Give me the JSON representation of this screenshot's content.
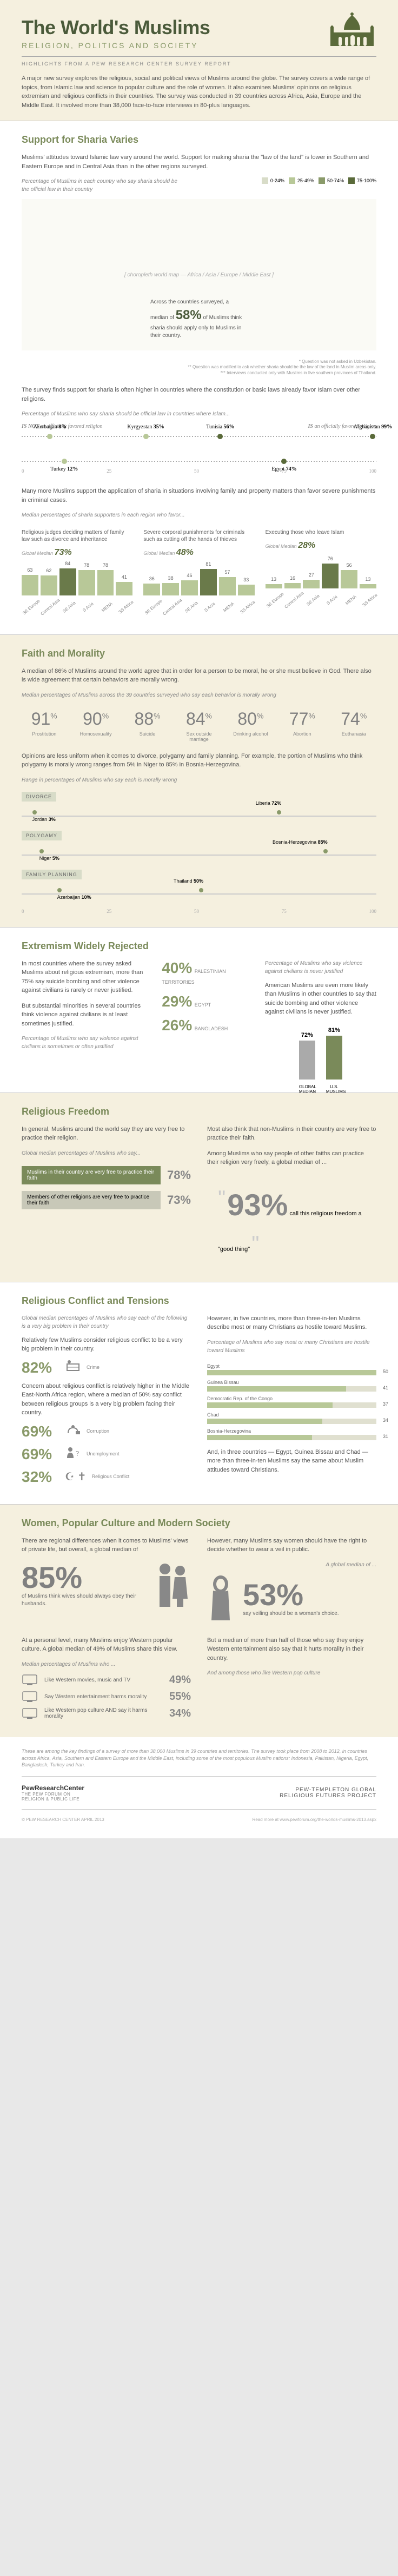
{
  "header": {
    "title": "The World's Muslims",
    "subtitle": "RELIGION, POLITICS AND SOCIETY",
    "highlights": "HIGHLIGHTS FROM A PEW RESEARCH CENTER SURVEY REPORT",
    "intro": "A major new survey explores the religious, social and political views of Muslims around the globe. The survey covers a wide range of topics, from Islamic law and science to popular culture and the role of women. It also examines Muslims' opinions on religious extremism and religious conflicts in their countries. The survey was conducted in 39 countries across Africa, Asia, Europe and the Middle East. It involved more than 38,000 face-to-face interviews in 80-plus languages."
  },
  "sharia": {
    "title": "Support for Sharia Varies",
    "p1": "Muslims' attitudes toward Islamic law vary around the world. Support for making sharia the \"law of the land\" is lower in Southern and Eastern Europe and in Central Asia than in the other regions surveyed.",
    "note1": "Percentage of Muslims in each country who say sharia should be the official law in their country",
    "legend": [
      {
        "label": "0-24%",
        "color": "#d8dcc8"
      },
      {
        "label": "25-49%",
        "color": "#b8c898"
      },
      {
        "label": "50-74%",
        "color": "#8a9a6a"
      },
      {
        "label": "75-100%",
        "color": "#5a6a3a"
      }
    ],
    "map_caption_pre": "Across the countries surveyed, a median of",
    "map_caption_pct": "58%",
    "map_caption_post": "of Muslims think sharia should apply only to Muslims in their country.",
    "footnotes": "* Question was not asked in Uzbekistan.\n** Question was modified to ask whether sharia should be the law of the land in Muslim areas only.\n*** Interviews conducted only with Muslims in five southern provinces of Thailand.",
    "p2": "The survey finds support for sharia is often higher in countries where the constitution or basic laws already favor Islam over other religions.",
    "note2": "Percentage of Muslims who say sharia should be official law in countries where Islam...",
    "left_label": "IS NOT an officially favored religion",
    "right_label": "IS an officially favored religion",
    "dots_top": [
      {
        "name": "Azerbaijan",
        "pct": 8,
        "color": "#b8c898"
      },
      {
        "name": "Kyrgyzstan",
        "pct": 35,
        "color": "#b8c898"
      },
      {
        "name": "Tunisia",
        "pct": 56,
        "color": "#5a6a3a"
      },
      {
        "name": "Afghanistan",
        "pct": 99,
        "color": "#5a6a3a"
      }
    ],
    "dots_bottom": [
      {
        "name": "Turkey",
        "pct": 12,
        "color": "#b8c898"
      },
      {
        "name": "Egypt",
        "pct": 74,
        "color": "#5a6a3a"
      }
    ],
    "p3": "Many more Muslims support the application of sharia in situations involving family and property matters than favor severe punishments in criminal cases.",
    "note3": "Median percentages of sharia supporters in each region who favor...",
    "cols": [
      {
        "title": "Religious judges deciding matters of family law such as divorce and inheritance",
        "global": "73%",
        "bars": [
          {
            "lbl": "SE Europe",
            "v": 63
          },
          {
            "lbl": "Central Asia",
            "v": 62
          },
          {
            "lbl": "SE Asia",
            "v": 84
          },
          {
            "lbl": "S Asia",
            "v": 78
          },
          {
            "lbl": "MENA",
            "v": 78
          },
          {
            "lbl": "SS Africa",
            "v": 41
          }
        ]
      },
      {
        "title": "Severe corporal punishments for criminals such as cutting off the hands of thieves",
        "global": "48%",
        "bars": [
          {
            "lbl": "SE Europe",
            "v": 36
          },
          {
            "lbl": "Central Asia",
            "v": 38
          },
          {
            "lbl": "SE Asia",
            "v": 46
          },
          {
            "lbl": "S Asia",
            "v": 81
          },
          {
            "lbl": "MENA",
            "v": 57
          },
          {
            "lbl": "SS Africa",
            "v": 33
          }
        ]
      },
      {
        "title": "Executing those who leave Islam",
        "global": "28%",
        "bars": [
          {
            "lbl": "SE Europe",
            "v": 13
          },
          {
            "lbl": "Central Asia",
            "v": 16
          },
          {
            "lbl": "SE Asia",
            "v": 27
          },
          {
            "lbl": "S Asia",
            "v": 76
          },
          {
            "lbl": "MENA",
            "v": 56
          },
          {
            "lbl": "SS Africa",
            "v": 13
          }
        ]
      }
    ]
  },
  "faith": {
    "title": "Faith and Morality",
    "p1": "A median of 86% of Muslims around the world agree that in order for a person to be moral, he or she must believe in God. There also is wide agreement that certain behaviors are morally wrong.",
    "note1": "Median percentages of Muslims across the 39 countries surveyed who say each behavior is morally wrong",
    "items": [
      {
        "pct": "91%",
        "lbl": "Prostitution"
      },
      {
        "pct": "90%",
        "lbl": "Homosexuality"
      },
      {
        "pct": "88%",
        "lbl": "Suicide"
      },
      {
        "pct": "84%",
        "lbl": "Sex outside marriage"
      },
      {
        "pct": "80%",
        "lbl": "Drinking alcohol"
      },
      {
        "pct": "77%",
        "lbl": "Abortion"
      },
      {
        "pct": "74%",
        "lbl": "Euthanasia"
      }
    ],
    "p2": "Opinions are less uniform when it comes to divorce, polygamy and family planning. For example, the portion of Muslims who think polygamy is morally wrong ranges from 5% in Niger to 85% in Bosnia-Herzegovina.",
    "note2": "Range in percentages of Muslims who say each is morally wrong",
    "ranges": [
      {
        "title": "DIVORCE",
        "low": {
          "name": "Jordan",
          "pct": 3
        },
        "high": {
          "name": "Liberia",
          "pct": 72
        }
      },
      {
        "title": "POLYGAMY",
        "low": {
          "name": "Niger",
          "pct": 5
        },
        "high": {
          "name": "Bosnia-Herzegovina",
          "pct": 85
        }
      },
      {
        "title": "FAMILY PLANNING",
        "low": {
          "name": "Azerbaijan",
          "pct": 10
        },
        "high": {
          "name": "Thailand",
          "pct": 50
        }
      }
    ]
  },
  "extremism": {
    "title": "Extremism Widely Rejected",
    "p1": "In most countries where the survey asked Muslims about religious extremism, more than 75% say suicide bombing and other violence against civilians is rarely or never justified.",
    "p2": "But substantial minorities in several countries think violence against civilians is at least sometimes justified.",
    "note1": "Percentage of Muslims who say violence against civilians is sometimes or often justified",
    "lowcountries": [
      {
        "name": "PALESTINIAN TERRITORIES",
        "pct": "40%"
      },
      {
        "name": "EGYPT",
        "pct": "29%"
      },
      {
        "name": "BANGLADESH",
        "pct": "26%"
      }
    ],
    "right_txt": "Percentage of Muslims who say violence against civilians is never justified",
    "p3": "American Muslims are even more likely than Muslims in other countries to say that suicide bombing and other violence against civilians is never justified.",
    "bars": [
      {
        "lbl": "GLOBAL MEDIAN",
        "v": 72,
        "color": "#aaa"
      },
      {
        "lbl": "U.S. MUSLIMS",
        "v": 81,
        "color": "#7a8a5a"
      }
    ]
  },
  "freedom": {
    "title": "Religious Freedom",
    "p1": "In general, Muslims around the world say they are very free to practice their religion.",
    "note1": "Global median percentages of Muslims who say...",
    "rows": [
      {
        "txt": "Muslims in their country are very free to practice their faith",
        "pct": "78%"
      },
      {
        "txt": "Members of other religions are very free to practice their faith",
        "pct": "73%"
      }
    ],
    "p2": "Most also think that non-Muslims in their country are very free to practice their faith.",
    "p3": "Among Muslims who say people of other faiths can practice their religion very freely, a global median of ...",
    "big": "93%",
    "big_after": "call this religious freedom a \"good thing\""
  },
  "conflict": {
    "title": "Religious Conflict and Tensions",
    "note1": "Global median percentages of Muslims who say each of the following is a very big problem in their country",
    "rows": [
      {
        "txt": "Relatively few Muslims consider religious conflict to be a very big problem in their country.",
        "lbl": "Crime",
        "pct": "82%",
        "icon": "crime"
      },
      {
        "txt": "Concern about religious conflict is relatively higher in the Middle East-North Africa region, where a median of 50% say conflict between religious groups is a very big problem facing their country.",
        "lbl": "Corruption",
        "pct": "69%",
        "icon": "corrupt"
      },
      {
        "txt": "",
        "lbl": "Unemployment",
        "pct": "69%",
        "icon": "unemp"
      },
      {
        "txt": "",
        "lbl": "Religious Conflict",
        "pct": "32%",
        "icon": "cross-crescent"
      }
    ],
    "p2": "However, in five countries, more than three-in-ten Muslims describe most or many Christians as hostile toward Muslims.",
    "note2": "Percentage of Muslims who say most or many Christians are hostile toward Muslims",
    "bars": [
      {
        "name": "Egypt",
        "pct": 50
      },
      {
        "name": "Guinea Bissau",
        "pct": 41
      },
      {
        "name": "Democratic Rep. of the Congo",
        "pct": 37
      },
      {
        "name": "Chad",
        "pct": 34
      },
      {
        "name": "Bosnia-Herzegovina",
        "pct": 31
      }
    ],
    "p3": "And, in three countries — Egypt, Guinea Bissau and Chad — more than three-in-ten Muslims say the same about Muslim attitudes toward Christians."
  },
  "women": {
    "title": "Women, Popular Culture and Modern Society",
    "p1": "There are regional differences when it comes to Muslims' views of private life, but overall, a global median of",
    "big1": "85%",
    "after1": "of Muslims think wives should always obey their husbands.",
    "p2": "However, many Muslims say women should have the right to decide whether to wear a veil in public.",
    "pre2": "A global median of ...",
    "big2": "53%",
    "after2": "say veiling should be a woman's choice.",
    "p3": "At a personal level, many Muslims enjoy Western popular culture. A global median of 49% of Muslims share this view.",
    "note3": "Median percentages of Muslims who ...",
    "rows3": [
      {
        "lbl": "Like Western movies, music and TV",
        "pct": "49%"
      },
      {
        "lbl": "Say Western entertainment harms morality",
        "pct": "55%"
      },
      {
        "lbl": "Like Western pop culture AND say it harms morality",
        "pct": "34%"
      }
    ],
    "p4": "But a median of more than half of those who say they enjoy Western entertainment also say that it hurts morality in their country.",
    "note4": "And among those who like Western pop culture"
  },
  "footer": {
    "about": "These are among the key findings of a survey of more than 38,000 Muslims in 39 countries and territories. The survey took place from 2008 to 2012, in countries across Africa, Asia, Southern and Eastern Europe and the Middle East, including some of the most populous Muslim nations: Indonesia, Pakistan, Nigeria, Egypt, Bangladesh, Turkey and Iran.",
    "logo1": "PewResearchCenter",
    "logo1b": "THE PEW FORUM ON RELIGION & PUBLIC LIFE",
    "logo2": "PEW-TEMPLETON GLOBAL RELIGIOUS FUTURES PROJECT",
    "copyright": "© PEW RESEARCH CENTER APRIL 2013",
    "link": "Read more at www.pewforum.org/the-worlds-muslims-2013.aspx"
  }
}
